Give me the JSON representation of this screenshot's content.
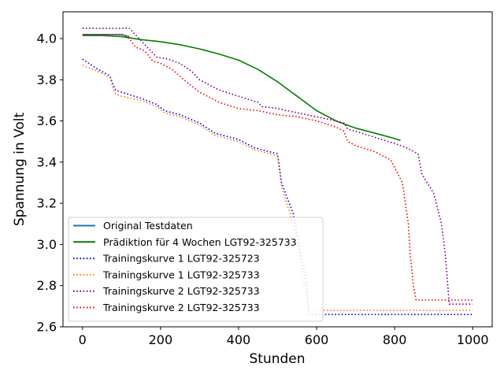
{
  "chart_data": {
    "type": "line",
    "xlabel": "Stunden",
    "ylabel": "Spannung in Volt",
    "xlim": [
      -50,
      1050
    ],
    "ylim": [
      2.6,
      4.13
    ],
    "xticks": [
      0,
      200,
      400,
      600,
      800,
      1000
    ],
    "yticks": [
      2.6,
      2.8,
      3.0,
      3.2,
      3.4,
      3.6,
      3.8,
      4.0
    ],
    "ytick_labels": [
      "2.6",
      "2.8",
      "3.0",
      "3.2",
      "3.4",
      "3.6",
      "3.8",
      "4.0"
    ],
    "grid": false,
    "legend_position": "lower-left",
    "series": [
      {
        "name": "Original Testdaten",
        "color": "#1f77b4",
        "style": "solid",
        "x": [
          0,
          20,
          40,
          60,
          80,
          100,
          120
        ],
        "y": [
          4.02,
          4.02,
          4.02,
          4.02,
          4.02,
          4.02,
          4.01
        ]
      },
      {
        "name": "Prädiktion für 4 Wochen LGT92-325733",
        "color": "#008000",
        "style": "solid",
        "x": [
          0,
          50,
          100,
          150,
          200,
          250,
          300,
          350,
          400,
          450,
          500,
          550,
          600,
          650,
          700,
          750,
          790,
          815
        ],
        "y": [
          4.015,
          4.015,
          4.01,
          3.995,
          3.985,
          3.97,
          3.95,
          3.925,
          3.895,
          3.85,
          3.79,
          3.72,
          3.65,
          3.6,
          3.565,
          3.54,
          3.52,
          3.505
        ]
      },
      {
        "name": "Trainingskurve 1 LGT92-325723",
        "color": "#0000ff",
        "style": "dotted",
        "x": [
          0,
          40,
          70,
          78,
          85,
          100,
          150,
          190,
          210,
          250,
          300,
          340,
          360,
          400,
          440,
          500,
          510,
          540,
          560,
          575,
          580,
          600,
          1000
        ],
        "y": [
          3.9,
          3.85,
          3.82,
          3.78,
          3.75,
          3.74,
          3.71,
          3.68,
          3.65,
          3.63,
          3.59,
          3.54,
          3.53,
          3.51,
          3.47,
          3.44,
          3.3,
          3.15,
          2.95,
          2.8,
          2.66,
          2.66,
          2.66
        ]
      },
      {
        "name": "Trainingskurve 1 LGT92-325733",
        "color": "#ff7f0e",
        "style": "dotted",
        "x": [
          0,
          40,
          70,
          78,
          85,
          100,
          150,
          190,
          210,
          250,
          300,
          340,
          360,
          400,
          440,
          500,
          510,
          540,
          560,
          565,
          570,
          580,
          600,
          1000
        ],
        "y": [
          3.87,
          3.84,
          3.81,
          3.76,
          3.73,
          3.72,
          3.7,
          3.67,
          3.64,
          3.62,
          3.58,
          3.53,
          3.52,
          3.5,
          3.46,
          3.43,
          3.28,
          3.1,
          2.92,
          2.8,
          2.82,
          2.68,
          2.68,
          2.68
        ]
      },
      {
        "name": "Trainingskurve 2 LGT92-325733",
        "color": "#800080",
        "style": "dotted",
        "x": [
          0,
          50,
          60,
          100,
          120,
          130,
          150,
          170,
          190,
          220,
          250,
          280,
          300,
          350,
          400,
          450,
          460,
          500,
          550,
          600,
          650,
          670,
          680,
          700,
          750,
          800,
          830,
          860,
          870,
          900,
          920,
          930,
          940,
          1000
        ],
        "y": [
          4.05,
          4.05,
          4.05,
          4.05,
          4.05,
          4.03,
          3.99,
          3.95,
          3.91,
          3.9,
          3.88,
          3.84,
          3.8,
          3.75,
          3.72,
          3.69,
          3.67,
          3.66,
          3.64,
          3.62,
          3.6,
          3.59,
          3.56,
          3.55,
          3.52,
          3.49,
          3.47,
          3.44,
          3.34,
          3.25,
          3.1,
          2.95,
          2.71,
          2.71
        ]
      },
      {
        "name": "Trainingskurve 2 LGT92-325733",
        "color": "#ff0000",
        "style": "dotted",
        "x": [
          0,
          50,
          100,
          120,
          135,
          160,
          180,
          200,
          230,
          260,
          300,
          350,
          400,
          450,
          500,
          550,
          600,
          650,
          670,
          680,
          700,
          750,
          790,
          820,
          835,
          840,
          848,
          855,
          1000
        ],
        "y": [
          4.02,
          4.02,
          4.02,
          4.0,
          3.96,
          3.94,
          3.89,
          3.88,
          3.85,
          3.8,
          3.74,
          3.69,
          3.66,
          3.65,
          3.63,
          3.62,
          3.6,
          3.57,
          3.55,
          3.5,
          3.48,
          3.45,
          3.41,
          3.3,
          3.1,
          2.95,
          2.8,
          2.73,
          2.73
        ]
      }
    ]
  }
}
